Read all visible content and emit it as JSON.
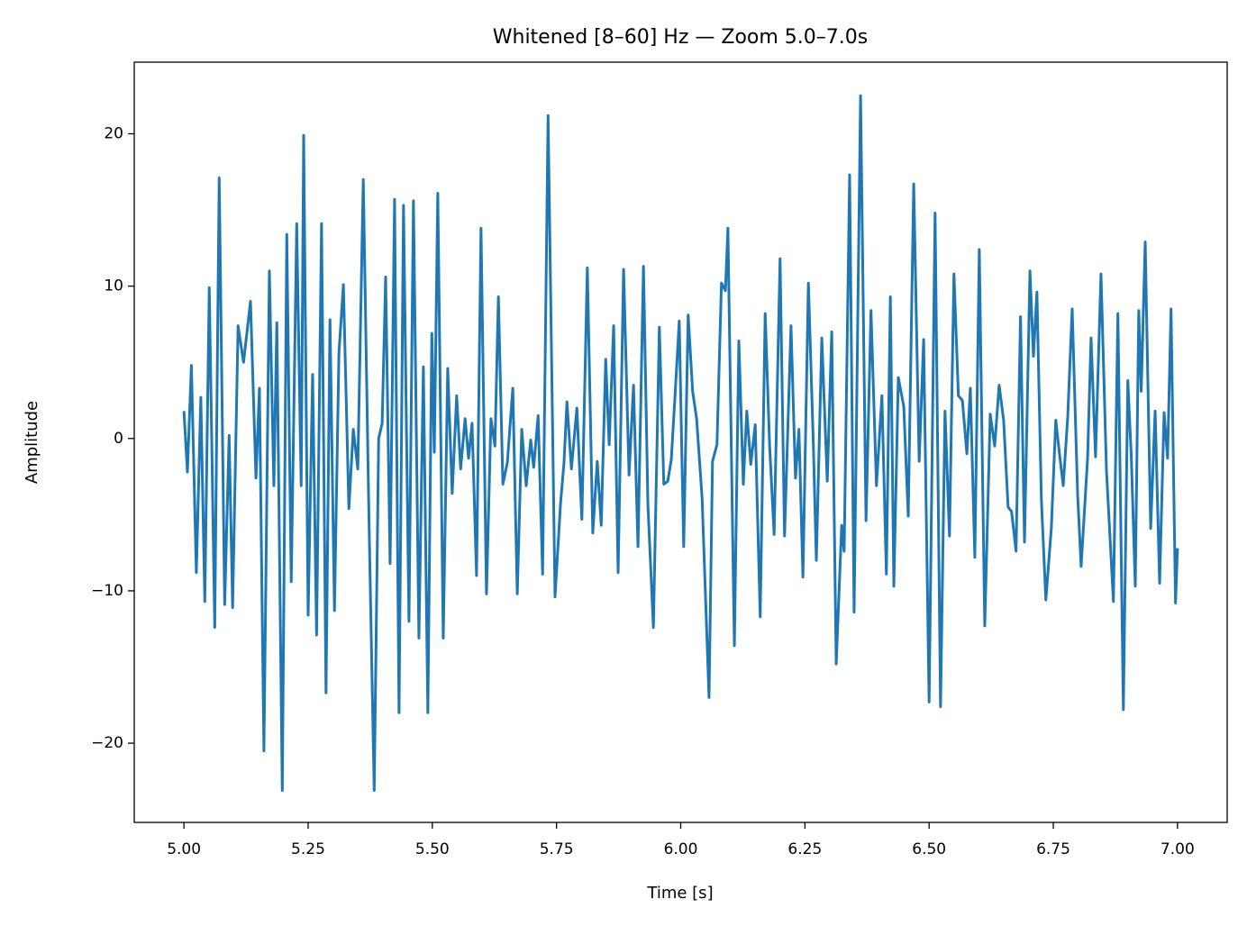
{
  "chart_data": {
    "type": "line",
    "title": "Whitened [8–60] Hz — Zoom 5.0–7.0s",
    "xlabel": "Time [s]",
    "ylabel": "Amplitude",
    "color": "#1f77b4",
    "xlim": [
      4.9,
      7.1
    ],
    "ylim": [
      -25.2,
      24.7
    ],
    "xticks": [
      {
        "value": 5.0,
        "label": "5.00"
      },
      {
        "value": 5.25,
        "label": "5.25"
      },
      {
        "value": 5.5,
        "label": "5.50"
      },
      {
        "value": 5.75,
        "label": "5.75"
      },
      {
        "value": 6.0,
        "label": "6.00"
      },
      {
        "value": 6.25,
        "label": "6.25"
      },
      {
        "value": 6.5,
        "label": "6.50"
      },
      {
        "value": 6.75,
        "label": "6.75"
      },
      {
        "value": 7.0,
        "label": "7.00"
      }
    ],
    "yticks": [
      {
        "value": -20,
        "label": "−20"
      },
      {
        "value": -10,
        "label": "−10"
      },
      0,
      10,
      20
    ],
    "x": [
      5.0,
      5.007,
      5.015,
      5.025,
      5.034,
      5.042,
      5.051,
      5.062,
      5.071,
      5.082,
      5.091,
      5.098,
      5.109,
      5.12,
      5.134,
      5.145,
      5.152,
      5.161,
      5.172,
      5.181,
      5.187,
      5.198,
      5.207,
      5.216,
      5.227,
      5.236,
      5.241,
      5.25,
      5.259,
      5.267,
      5.277,
      5.286,
      5.294,
      5.303,
      5.312,
      5.321,
      5.332,
      5.341,
      5.35,
      5.361,
      5.372,
      5.383,
      5.392,
      5.399,
      5.406,
      5.415,
      5.424,
      5.433,
      5.442,
      5.453,
      5.462,
      5.473,
      5.482,
      5.491,
      5.499,
      5.504,
      5.511,
      5.522,
      5.531,
      5.54,
      5.549,
      5.557,
      5.566,
      5.573,
      5.58,
      5.589,
      5.598,
      5.609,
      5.618,
      5.626,
      5.633,
      5.642,
      5.651,
      5.662,
      5.671,
      5.68,
      5.689,
      5.698,
      5.704,
      5.713,
      5.722,
      5.733,
      5.747,
      5.758,
      5.765,
      5.771,
      5.78,
      5.791,
      5.801,
      5.812,
      5.823,
      5.832,
      5.84,
      5.849,
      5.856,
      5.865,
      5.874,
      5.885,
      5.896,
      5.905,
      5.914,
      5.925,
      5.934,
      5.945,
      5.957,
      5.966,
      5.974,
      5.981,
      5.988,
      5.997,
      6.006,
      6.015,
      6.024,
      6.032,
      6.043,
      6.057,
      6.064,
      6.073,
      6.082,
      6.09,
      6.095,
      6.108,
      6.117,
      6.126,
      6.133,
      6.141,
      6.15,
      6.16,
      6.17,
      6.179,
      6.188,
      6.2,
      6.209,
      6.222,
      6.231,
      6.238,
      6.246,
      6.257,
      6.267,
      6.273,
      6.284,
      6.295,
      6.304,
      6.313,
      6.324,
      6.329,
      6.34,
      6.349,
      6.362,
      6.373,
      6.383,
      6.394,
      6.405,
      6.414,
      6.422,
      6.429,
      6.438,
      6.449,
      6.458,
      6.469,
      6.48,
      6.489,
      6.5,
      6.512,
      6.523,
      6.532,
      6.541,
      6.55,
      6.559,
      6.567,
      6.576,
      6.583,
      6.592,
      6.601,
      6.612,
      6.623,
      6.632,
      6.641,
      6.65,
      6.659,
      6.666,
      6.675,
      6.684,
      6.692,
      6.703,
      6.71,
      6.717,
      6.726,
      6.735,
      6.746,
      6.755,
      6.762,
      6.77,
      6.779,
      6.788,
      6.799,
      6.806,
      6.819,
      6.826,
      6.835,
      6.846,
      6.857,
      6.871,
      6.88,
      6.891,
      6.9,
      6.907,
      6.915,
      6.922,
      6.927,
      6.935,
      6.946,
      6.955,
      6.964,
      6.973,
      6.98,
      6.987,
      6.996,
      7.0
    ],
    "values": [
      1.8,
      -2.2,
      4.8,
      -8.8,
      2.7,
      -10.7,
      9.9,
      -12.4,
      17.1,
      -10.9,
      0.2,
      -11.1,
      7.4,
      5.0,
      9.0,
      -2.6,
      3.3,
      -20.5,
      11.0,
      -3.1,
      7.6,
      -23.1,
      13.4,
      -9.4,
      14.1,
      -3.1,
      19.9,
      -11.6,
      4.2,
      -12.9,
      14.1,
      -16.7,
      7.8,
      -11.3,
      5.6,
      10.1,
      -4.6,
      0.6,
      -2.0,
      17.0,
      -4.4,
      -23.1,
      0.0,
      1.0,
      10.6,
      -8.2,
      15.7,
      -18.0,
      15.3,
      -12.0,
      15.6,
      -13.1,
      4.7,
      -18.0,
      6.9,
      -0.9,
      16.1,
      -13.1,
      4.6,
      -3.6,
      2.8,
      -2.0,
      1.3,
      -1.3,
      1.0,
      -9.0,
      13.8,
      -10.2,
      1.3,
      -0.5,
      9.3,
      -3.0,
      -1.6,
      3.3,
      -10.2,
      0.6,
      -3.1,
      -0.1,
      -1.9,
      1.5,
      -8.9,
      21.2,
      -10.4,
      -4.3,
      -1.6,
      2.4,
      -2.0,
      2.0,
      -5.3,
      11.2,
      -6.2,
      -1.5,
      -5.7,
      5.2,
      -0.4,
      7.4,
      -8.8,
      11.1,
      -2.4,
      3.5,
      -7.1,
      11.3,
      -4.4,
      -12.4,
      7.3,
      -3.0,
      -2.8,
      -1.4,
      2.5,
      7.7,
      -7.1,
      8.1,
      3.1,
      1.3,
      -3.9,
      -17.0,
      -1.5,
      -0.4,
      10.2,
      9.7,
      13.8,
      -13.6,
      6.4,
      -3.0,
      1.8,
      -1.7,
      0.9,
      -11.7,
      8.2,
      -0.5,
      -6.3,
      11.8,
      -6.4,
      7.4,
      -2.6,
      0.6,
      -9.1,
      10.2,
      -0.4,
      -8.0,
      6.6,
      -2.8,
      7.0,
      -14.8,
      -5.7,
      -7.4,
      17.3,
      -11.4,
      22.5,
      -5.4,
      8.4,
      -3.1,
      2.8,
      -8.9,
      9.3,
      -9.7,
      4.0,
      2.1,
      -5.1,
      16.7,
      -1.5,
      6.5,
      -17.3,
      14.8,
      -17.6,
      1.8,
      -6.4,
      10.8,
      2.8,
      2.5,
      -1.0,
      3.3,
      -7.8,
      12.4,
      -12.3,
      1.6,
      -0.5,
      3.5,
      1.2,
      -4.5,
      -4.8,
      -7.4,
      8.0,
      -6.8,
      11.0,
      5.4,
      9.6,
      -4.0,
      -10.6,
      -5.9,
      1.2,
      -0.9,
      -3.1,
      1.4,
      8.5,
      -3.7,
      -8.4,
      -1.3,
      6.6,
      -1.2,
      10.8,
      -2.1,
      -10.7,
      8.2,
      -17.8,
      3.8,
      -1.2,
      -9.7,
      8.4,
      3.1,
      12.9,
      -5.9,
      1.8,
      -9.5,
      1.7,
      -1.3,
      8.5,
      -10.8,
      -7.2
    ]
  }
}
